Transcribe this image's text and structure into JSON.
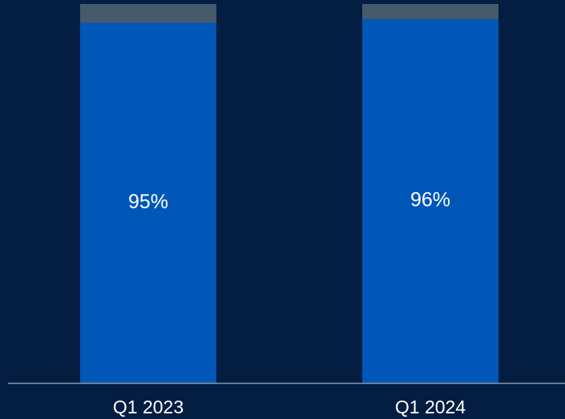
{
  "chart_data": {
    "type": "stacked_bar",
    "categories": [
      "Q1 2023",
      "Q1 2024"
    ],
    "series": [
      {
        "color": "#0057b8",
        "values": [
          95,
          96
        ],
        "value_labels": [
          "95%",
          "96%"
        ]
      },
      {
        "color": "#465a6c",
        "values": [
          5,
          4
        ]
      }
    ],
    "ylim": [
      0,
      100
    ]
  }
}
